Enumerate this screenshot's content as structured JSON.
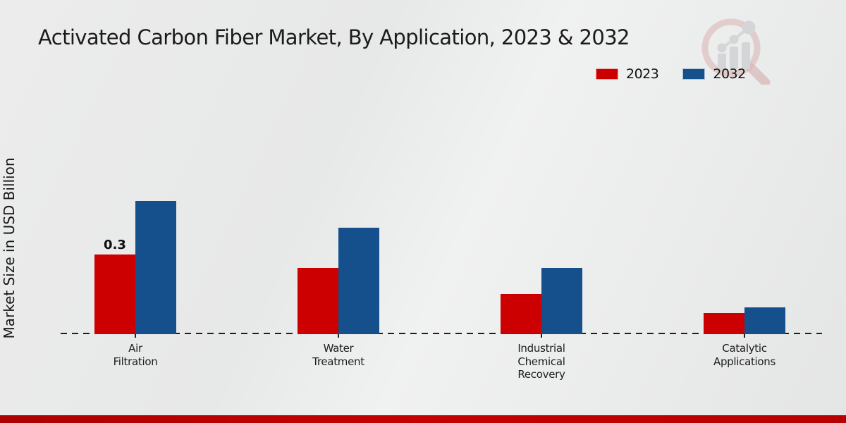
{
  "chart_data": {
    "type": "bar",
    "title": "Activated Carbon Fiber Market, By Application, 2023 & 2032",
    "xlabel": "",
    "ylabel": "Market Size in USD Billion",
    "categories": [
      "Air Filtration",
      "Water Treatment",
      "Industrial Chemical Recovery",
      "Catalytic Applications"
    ],
    "category_label_lines": [
      [
        "Air",
        "Filtration"
      ],
      [
        "Water",
        "Treatment"
      ],
      [
        "Industrial",
        "Chemical",
        "Recovery"
      ],
      [
        "Catalytic",
        "Applications"
      ]
    ],
    "series": [
      {
        "name": "2023",
        "color": "#cc0000",
        "values": [
          0.3,
          0.25,
          0.15,
          0.08
        ]
      },
      {
        "name": "2032",
        "color": "#15508c",
        "values": [
          0.5,
          0.4,
          0.25,
          0.1
        ]
      }
    ],
    "annotations": [
      {
        "series_index": 0,
        "category_index": 0,
        "text": "0.3"
      }
    ],
    "ylim": [
      0,
      0.55
    ],
    "grid": false,
    "legend_position": "top-right",
    "baseline_style": "dashed",
    "y_axis_ticks_visible": false
  },
  "branding": {
    "footer_bar_color": "#bb0000",
    "watermark_icon": "bar-chart-magnifier-logo"
  }
}
